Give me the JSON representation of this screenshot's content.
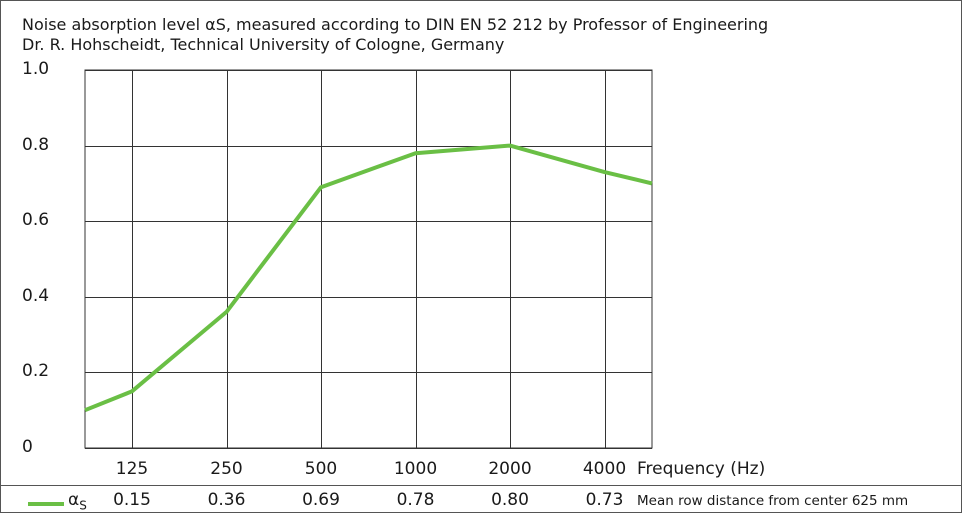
{
  "title_line_1": "Noise absorption level αS, measured according to DIN EN 52 212 by Professor of Engineering",
  "title_line_2": "Dr. R. Hohscheidt, Technical University of Cologne, Germany",
  "chart_data": {
    "type": "line",
    "x": [
      "125",
      "250",
      "500",
      "1000",
      "2000",
      "4000"
    ],
    "xlabel": "Frequency (Hz)",
    "y_ticks": [
      "0",
      "0.2",
      "0.4",
      "0.6",
      "0.8",
      "1.0"
    ],
    "ylim": [
      0,
      1.0
    ],
    "grid": true,
    "series": [
      {
        "name": "αS",
        "color": "#6abf45",
        "points": [
          {
            "x": "62.5",
            "y": 0.1
          },
          {
            "x": "125",
            "y": 0.15
          },
          {
            "x": "250",
            "y": 0.36
          },
          {
            "x": "500",
            "y": 0.69
          },
          {
            "x": "1000",
            "y": 0.78
          },
          {
            "x": "2000",
            "y": 0.8
          },
          {
            "x": "4000",
            "y": 0.73
          },
          {
            "x": "8000",
            "y": 0.7
          }
        ]
      }
    ],
    "table": {
      "symbol": "α",
      "symbol_sub": "S",
      "values": [
        "0.15",
        "0.36",
        "0.69",
        "0.78",
        "0.80",
        "0.73"
      ],
      "note": "Mean row distance from center 625 mm"
    }
  }
}
